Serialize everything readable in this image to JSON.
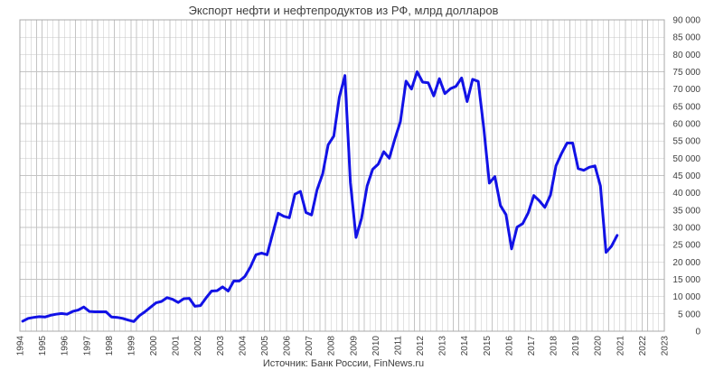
{
  "chart_data": {
    "type": "line",
    "title": "Экспорт нефти и нефтепродуктов из РФ, млрд долларов",
    "source": "Источник: Банк России, FinNews.ru",
    "xlim": [
      1994,
      2023
    ],
    "ylim": [
      0,
      90000
    ],
    "grid": true,
    "x_ticks": [
      "1994",
      "1995",
      "1996",
      "1997",
      "1998",
      "1999",
      "2000",
      "2001",
      "2002",
      "2003",
      "2004",
      "2005",
      "2006",
      "2007",
      "2008",
      "2009",
      "2010",
      "2011",
      "2012",
      "2013",
      "2014",
      "2015",
      "2016",
      "2017",
      "2018",
      "2019",
      "2020",
      "2021",
      "2022",
      "2023"
    ],
    "y_ticks": [
      "0",
      "5 000",
      "10 000",
      "15 000",
      "20 000",
      "25 000",
      "30 000",
      "35 000",
      "40 000",
      "45 000",
      "50 000",
      "55 000",
      "60 000",
      "65 000",
      "70 000",
      "75 000",
      "80 000",
      "85 000",
      "90 000"
    ],
    "y_axis_position": "right",
    "series": [
      {
        "color": "#1212e6",
        "data": [
          {
            "year": 1994,
            "quarterly": [
              2900,
              3700,
              4000,
              4200
            ]
          },
          {
            "year": 1995,
            "quarterly": [
              4100,
              4600,
              4900,
              5100
            ]
          },
          {
            "year": 1996,
            "quarterly": [
              4900,
              5700,
              6100,
              7000
            ]
          },
          {
            "year": 1997,
            "quarterly": [
              5700,
              5600,
              5600,
              5600
            ]
          },
          {
            "year": 1998,
            "quarterly": [
              4100,
              4000,
              3700,
              3200
            ]
          },
          {
            "year": 1999,
            "quarterly": [
              2800,
              4500,
              5600,
              6900
            ]
          },
          {
            "year": 2000,
            "quarterly": [
              8200,
              8600,
              9700,
              9200
            ]
          },
          {
            "year": 2001,
            "quarterly": [
              8300,
              9400,
              9500,
              7200
            ]
          },
          {
            "year": 2002,
            "quarterly": [
              7400,
              9600,
              11600,
              11700
            ]
          },
          {
            "year": 2003,
            "quarterly": [
              12800,
              11600,
              14500,
              14500
            ]
          },
          {
            "year": 2004,
            "quarterly": [
              15800,
              18600,
              22100,
              22600
            ]
          },
          {
            "year": 2005,
            "quarterly": [
              22100,
              28200,
              34100,
              33200
            ]
          },
          {
            "year": 2006,
            "quarterly": [
              32800,
              39600,
              40400,
              34300
            ]
          },
          {
            "year": 2007,
            "quarterly": [
              33600,
              40900,
              45500,
              53900
            ]
          },
          {
            "year": 2008,
            "quarterly": [
              56400,
              67600,
              73900,
              42900
            ]
          },
          {
            "year": 2009,
            "quarterly": [
              27100,
              32600,
              42000,
              46800
            ]
          },
          {
            "year": 2010,
            "quarterly": [
              48300,
              51900,
              50000,
              55600
            ]
          },
          {
            "year": 2011,
            "quarterly": [
              60600,
              72300,
              70000,
              75000
            ]
          },
          {
            "year": 2012,
            "quarterly": [
              72000,
              71800,
              68000,
              73000
            ]
          },
          {
            "year": 2013,
            "quarterly": [
              68700,
              70100,
              70800,
              73200
            ]
          },
          {
            "year": 2014,
            "quarterly": [
              66400,
              72800,
              72200,
              58800
            ]
          },
          {
            "year": 2015,
            "quarterly": [
              42800,
              44700,
              36300,
              33700
            ]
          },
          {
            "year": 2016,
            "quarterly": [
              23800,
              30100,
              31100,
              34200
            ]
          },
          {
            "year": 2017,
            "quarterly": [
              39200,
              37700,
              35800,
              39300
            ]
          },
          {
            "year": 2018,
            "quarterly": [
              47800,
              51400,
              54400,
              54400
            ]
          },
          {
            "year": 2019,
            "quarterly": [
              47000,
              46500,
              47400,
              47800
            ]
          },
          {
            "year": 2020,
            "quarterly": [
              42000,
              22800,
              24600,
              27700
            ]
          }
        ]
      }
    ]
  }
}
